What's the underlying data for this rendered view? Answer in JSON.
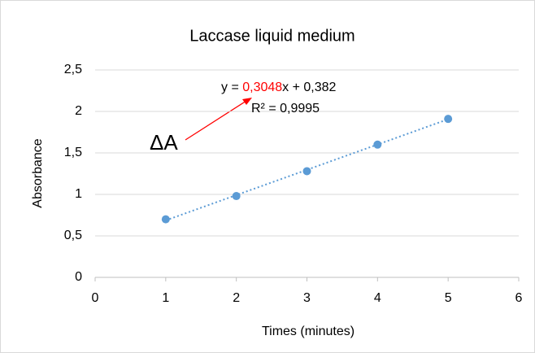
{
  "chart_data": {
    "type": "scatter",
    "title": "Laccase liquid medium",
    "x_label": "Times (minutes)",
    "y_label": "Absorbance",
    "series": [
      {
        "name": "Absorbance",
        "color": "#5b9bd5",
        "x": [
          1,
          2,
          3,
          4,
          5
        ],
        "values": [
          0.7,
          0.98,
          1.28,
          1.6,
          1.91
        ]
      }
    ],
    "xlim": [
      0,
      6
    ],
    "xticks": [
      0,
      1,
      2,
      3,
      4,
      5,
      6
    ],
    "ylim": [
      0,
      2.5
    ],
    "yticks": [
      0,
      {
        "value": 0.5,
        "label": "0,5"
      },
      1,
      {
        "value": 1.5,
        "label": "1,5"
      },
      2,
      {
        "value": 2.5,
        "label": "2,5"
      }
    ],
    "grid": true,
    "trendline": {
      "color": "#5b9bd5",
      "equation_prefix": "y = ",
      "slope": {
        "value": 0.3048,
        "label": "0,3048"
      },
      "equation_middle": "x + ",
      "intercept": {
        "value": 0.382,
        "label": "0,382"
      },
      "r_squared": "R² = 0,9995"
    },
    "annotation": {
      "text": "ΔA",
      "color": "#ff0000"
    }
  }
}
